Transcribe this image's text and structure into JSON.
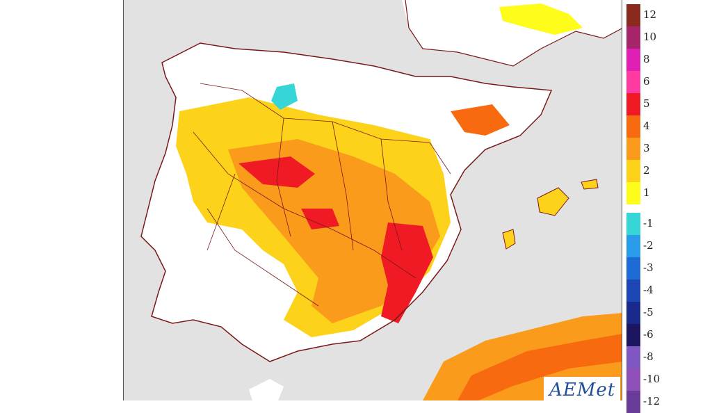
{
  "legend": {
    "items": [
      {
        "label": "12",
        "color": "#8a2a1e"
      },
      {
        "label": "10",
        "color": "#a6246a"
      },
      {
        "label": "8",
        "color": "#e01fb5"
      },
      {
        "label": "6",
        "color": "#ff3aa0"
      },
      {
        "label": "5",
        "color": "#f01a24"
      },
      {
        "label": "4",
        "color": "#f76a10"
      },
      {
        "label": "3",
        "color": "#fb9b1c"
      },
      {
        "label": "2",
        "color": "#fdd21a"
      },
      {
        "label": "1",
        "color": "#fdfc1a"
      },
      {
        "label": "-1",
        "color": "#36d6d6"
      },
      {
        "label": "-2",
        "color": "#2a9bea"
      },
      {
        "label": "-3",
        "color": "#1f6bd6"
      },
      {
        "label": "-4",
        "color": "#1b46b4"
      },
      {
        "label": "-5",
        "color": "#1a2a8c"
      },
      {
        "label": "-6",
        "color": "#1c1660"
      },
      {
        "label": "-8",
        "color": "#7e57c2"
      },
      {
        "label": "-10",
        "color": "#8e4fb8"
      },
      {
        "label": "-12",
        "color": "#6a3c99"
      }
    ]
  },
  "logo": {
    "text": "AEMet"
  },
  "colors": {
    "sea": "#e2e2e2",
    "land": "#ffffff",
    "border": "#7a1818"
  }
}
